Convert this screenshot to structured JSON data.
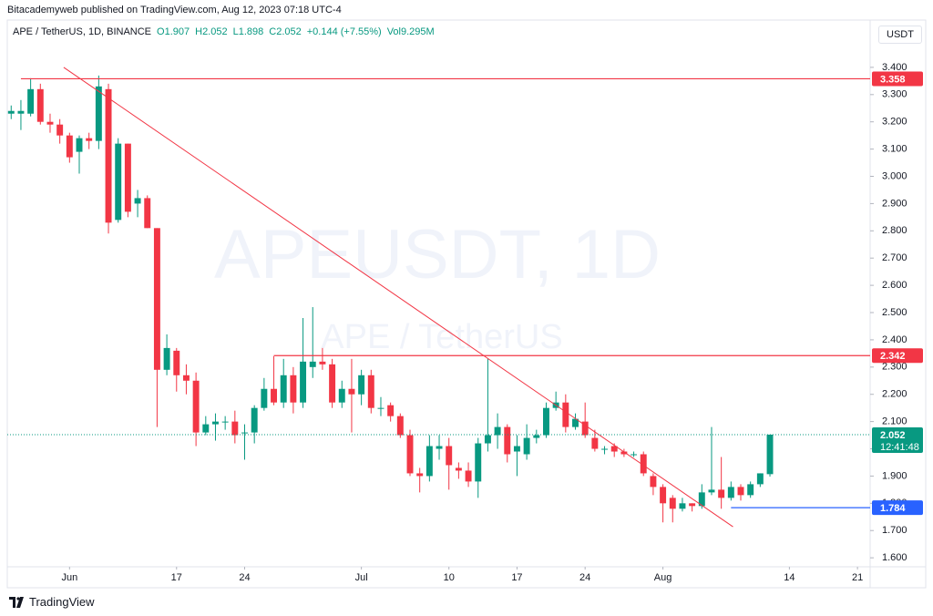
{
  "header": {
    "published": "Bitacademyweb published on TradingView.com, Aug 12, 2023 07:18 UTC-4",
    "symbol": "APE / TetherUS, 1D, BINANCE",
    "ohlc": [
      "O1.907",
      "H2.052",
      "L1.898",
      "C2.052",
      "+0.144 (+7.55%)",
      "Vol9.295M"
    ],
    "currency": "USDT"
  },
  "footer": {
    "brand": "TradingView"
  },
  "chart_data": {
    "type": "candlestick",
    "watermark": [
      "APEUSDT, 1D",
      "APE / TetherUS"
    ],
    "open": [
      3.23,
      3.23,
      3.23,
      3.32,
      3.2,
      3.19,
      3.15,
      3.09,
      3.14,
      3.13,
      3.32,
      2.84,
      3.12,
      2.9,
      2.92,
      2.81,
      2.29,
      2.36,
      2.27,
      2.25,
      2.06,
      2.09,
      2.1,
      2.1,
      2.06,
      2.06,
      2.15,
      2.22,
      2.17,
      2.27,
      2.17,
      2.3,
      2.32,
      2.31,
      2.17,
      2.22,
      2.2,
      2.27,
      2.15,
      2.16,
      2.12,
      2.05,
      1.91,
      1.9,
      2.0,
      2.01,
      1.93,
      1.92,
      1.88,
      2.02,
      2.05,
      2.08,
      1.99,
      1.98,
      2.04,
      2.05,
      2.15,
      2.17,
      2.08,
      2.1,
      2.04,
      2.0,
      2.01,
      1.99,
      1.98,
      1.98,
      1.9,
      1.86,
      1.82,
      1.78,
      1.8,
      1.79,
      1.84,
      1.85,
      1.82,
      1.86,
      1.83,
      1.87,
      1.907
    ],
    "high": [
      3.26,
      3.28,
      3.36,
      3.34,
      3.23,
      3.21,
      3.16,
      3.15,
      3.16,
      3.37,
      3.34,
      3.14,
      3.12,
      2.95,
      2.93,
      2.81,
      2.42,
      2.37,
      2.31,
      2.28,
      2.12,
      2.13,
      2.12,
      2.14,
      2.09,
      2.16,
      2.26,
      2.34,
      2.33,
      2.3,
      2.48,
      2.52,
      2.37,
      2.33,
      2.25,
      2.33,
      2.29,
      2.29,
      2.19,
      2.17,
      2.13,
      2.07,
      1.93,
      2.05,
      2.05,
      2.04,
      1.95,
      1.95,
      2.04,
      2.33,
      2.13,
      2.09,
      2.05,
      2.09,
      2.07,
      2.17,
      2.21,
      2.2,
      2.13,
      2.17,
      2.07,
      2.01,
      2.02,
      2.0,
      1.99,
      1.99,
      1.91,
      1.87,
      1.83,
      1.82,
      1.8,
      1.87,
      2.08,
      1.97,
      1.88,
      1.87,
      1.88,
      1.91,
      2.052
    ],
    "low": [
      3.21,
      3.17,
      3.22,
      3.19,
      3.16,
      3.12,
      3.05,
      3.01,
      3.1,
      3.1,
      2.79,
      2.83,
      2.85,
      2.85,
      2.81,
      2.08,
      2.27,
      2.21,
      2.2,
      2.01,
      2.05,
      2.03,
      2.07,
      2.02,
      1.96,
      2.02,
      2.14,
      2.16,
      2.15,
      2.13,
      2.15,
      2.26,
      2.29,
      2.15,
      2.15,
      2.06,
      2.16,
      2.13,
      2.12,
      2.1,
      2.04,
      1.9,
      1.84,
      1.88,
      1.96,
      1.85,
      1.89,
      1.86,
      1.82,
      1.99,
      2.0,
      1.95,
      1.9,
      1.96,
      2.02,
      2.04,
      2.14,
      2.06,
      2.07,
      2.04,
      1.99,
      1.98,
      1.97,
      1.97,
      1.97,
      1.9,
      1.83,
      1.73,
      1.73,
      1.77,
      1.77,
      1.78,
      1.83,
      1.78,
      1.81,
      1.81,
      1.82,
      1.86,
      1.898
    ],
    "close": [
      3.24,
      3.24,
      3.32,
      3.2,
      3.19,
      3.15,
      3.07,
      3.14,
      3.13,
      3.33,
      2.83,
      3.12,
      2.87,
      2.92,
      2.81,
      2.29,
      2.37,
      2.27,
      2.25,
      2.06,
      2.09,
      2.1,
      2.1,
      2.05,
      2.06,
      2.15,
      2.22,
      2.17,
      2.27,
      2.17,
      2.32,
      2.32,
      2.31,
      2.17,
      2.22,
      2.2,
      2.27,
      2.15,
      2.15,
      2.12,
      2.05,
      1.91,
      1.9,
      2.01,
      2.01,
      1.94,
      1.92,
      1.88,
      2.02,
      2.05,
      2.08,
      1.98,
      2.01,
      2.04,
      2.05,
      2.15,
      2.17,
      2.08,
      2.11,
      2.05,
      2.0,
      2.0,
      1.99,
      1.98,
      1.98,
      1.91,
      1.86,
      1.8,
      1.78,
      1.8,
      1.79,
      1.84,
      1.85,
      1.82,
      1.86,
      1.83,
      1.87,
      1.91,
      2.052
    ],
    "up_color": "#089981",
    "down_color": "#f23645",
    "xlim": [
      -0.4,
      88.3
    ],
    "xticks": [
      {
        "value": 6,
        "label": "Jun"
      },
      17,
      24,
      {
        "value": 36,
        "label": "Jul"
      },
      {
        "value": 45,
        "label": "10"
      },
      {
        "value": 52,
        "label": "17"
      },
      {
        "value": 59,
        "label": "24"
      },
      {
        "value": 67,
        "label": "Aug"
      },
      {
        "value": 80,
        "label": "14"
      },
      {
        "value": 87,
        "label": "21"
      }
    ],
    "ylim": [
      1.567,
      3.5
    ],
    "yticks": [
      {
        "value": 1.6,
        "label": "1.600"
      },
      {
        "value": 1.7,
        "label": "1.700"
      },
      {
        "value": 1.8,
        "label": "1.800"
      },
      {
        "value": 1.9,
        "label": "1.900"
      },
      {
        "value": 2.0,
        "label": "2.000"
      },
      {
        "value": 2.1,
        "label": "2.100"
      },
      {
        "value": 2.2,
        "label": "2.200"
      },
      {
        "value": 2.3,
        "label": "2.300"
      },
      {
        "value": 2.4,
        "label": "2.400"
      },
      {
        "value": 2.5,
        "label": "2.500"
      },
      {
        "value": 2.6,
        "label": "2.600"
      },
      {
        "value": 2.7,
        "label": "2.700"
      },
      {
        "value": 2.8,
        "label": "2.800"
      },
      {
        "value": 2.9,
        "label": "2.900"
      },
      {
        "value": 3.0,
        "label": "3.000"
      },
      {
        "value": 3.1,
        "label": "3.100"
      },
      {
        "value": 3.2,
        "label": "3.200"
      },
      {
        "value": 3.3,
        "label": "3.300"
      },
      {
        "value": 3.4,
        "label": "3.400"
      }
    ],
    "levels": [
      {
        "value": 3.358,
        "color": "#f23645",
        "start": 1
      },
      {
        "value": 2.342,
        "color": "#f23645",
        "start": 27
      },
      {
        "value": 1.784,
        "color": "#2962ff",
        "start": 74
      }
    ],
    "last": {
      "value": 2.052,
      "countdown": "12:41:48",
      "color": "#089981"
    },
    "trendline": {
      "x": [
        5.4,
        74.2
      ],
      "y": [
        3.4,
        1.714
      ],
      "color": "#f23645"
    }
  }
}
